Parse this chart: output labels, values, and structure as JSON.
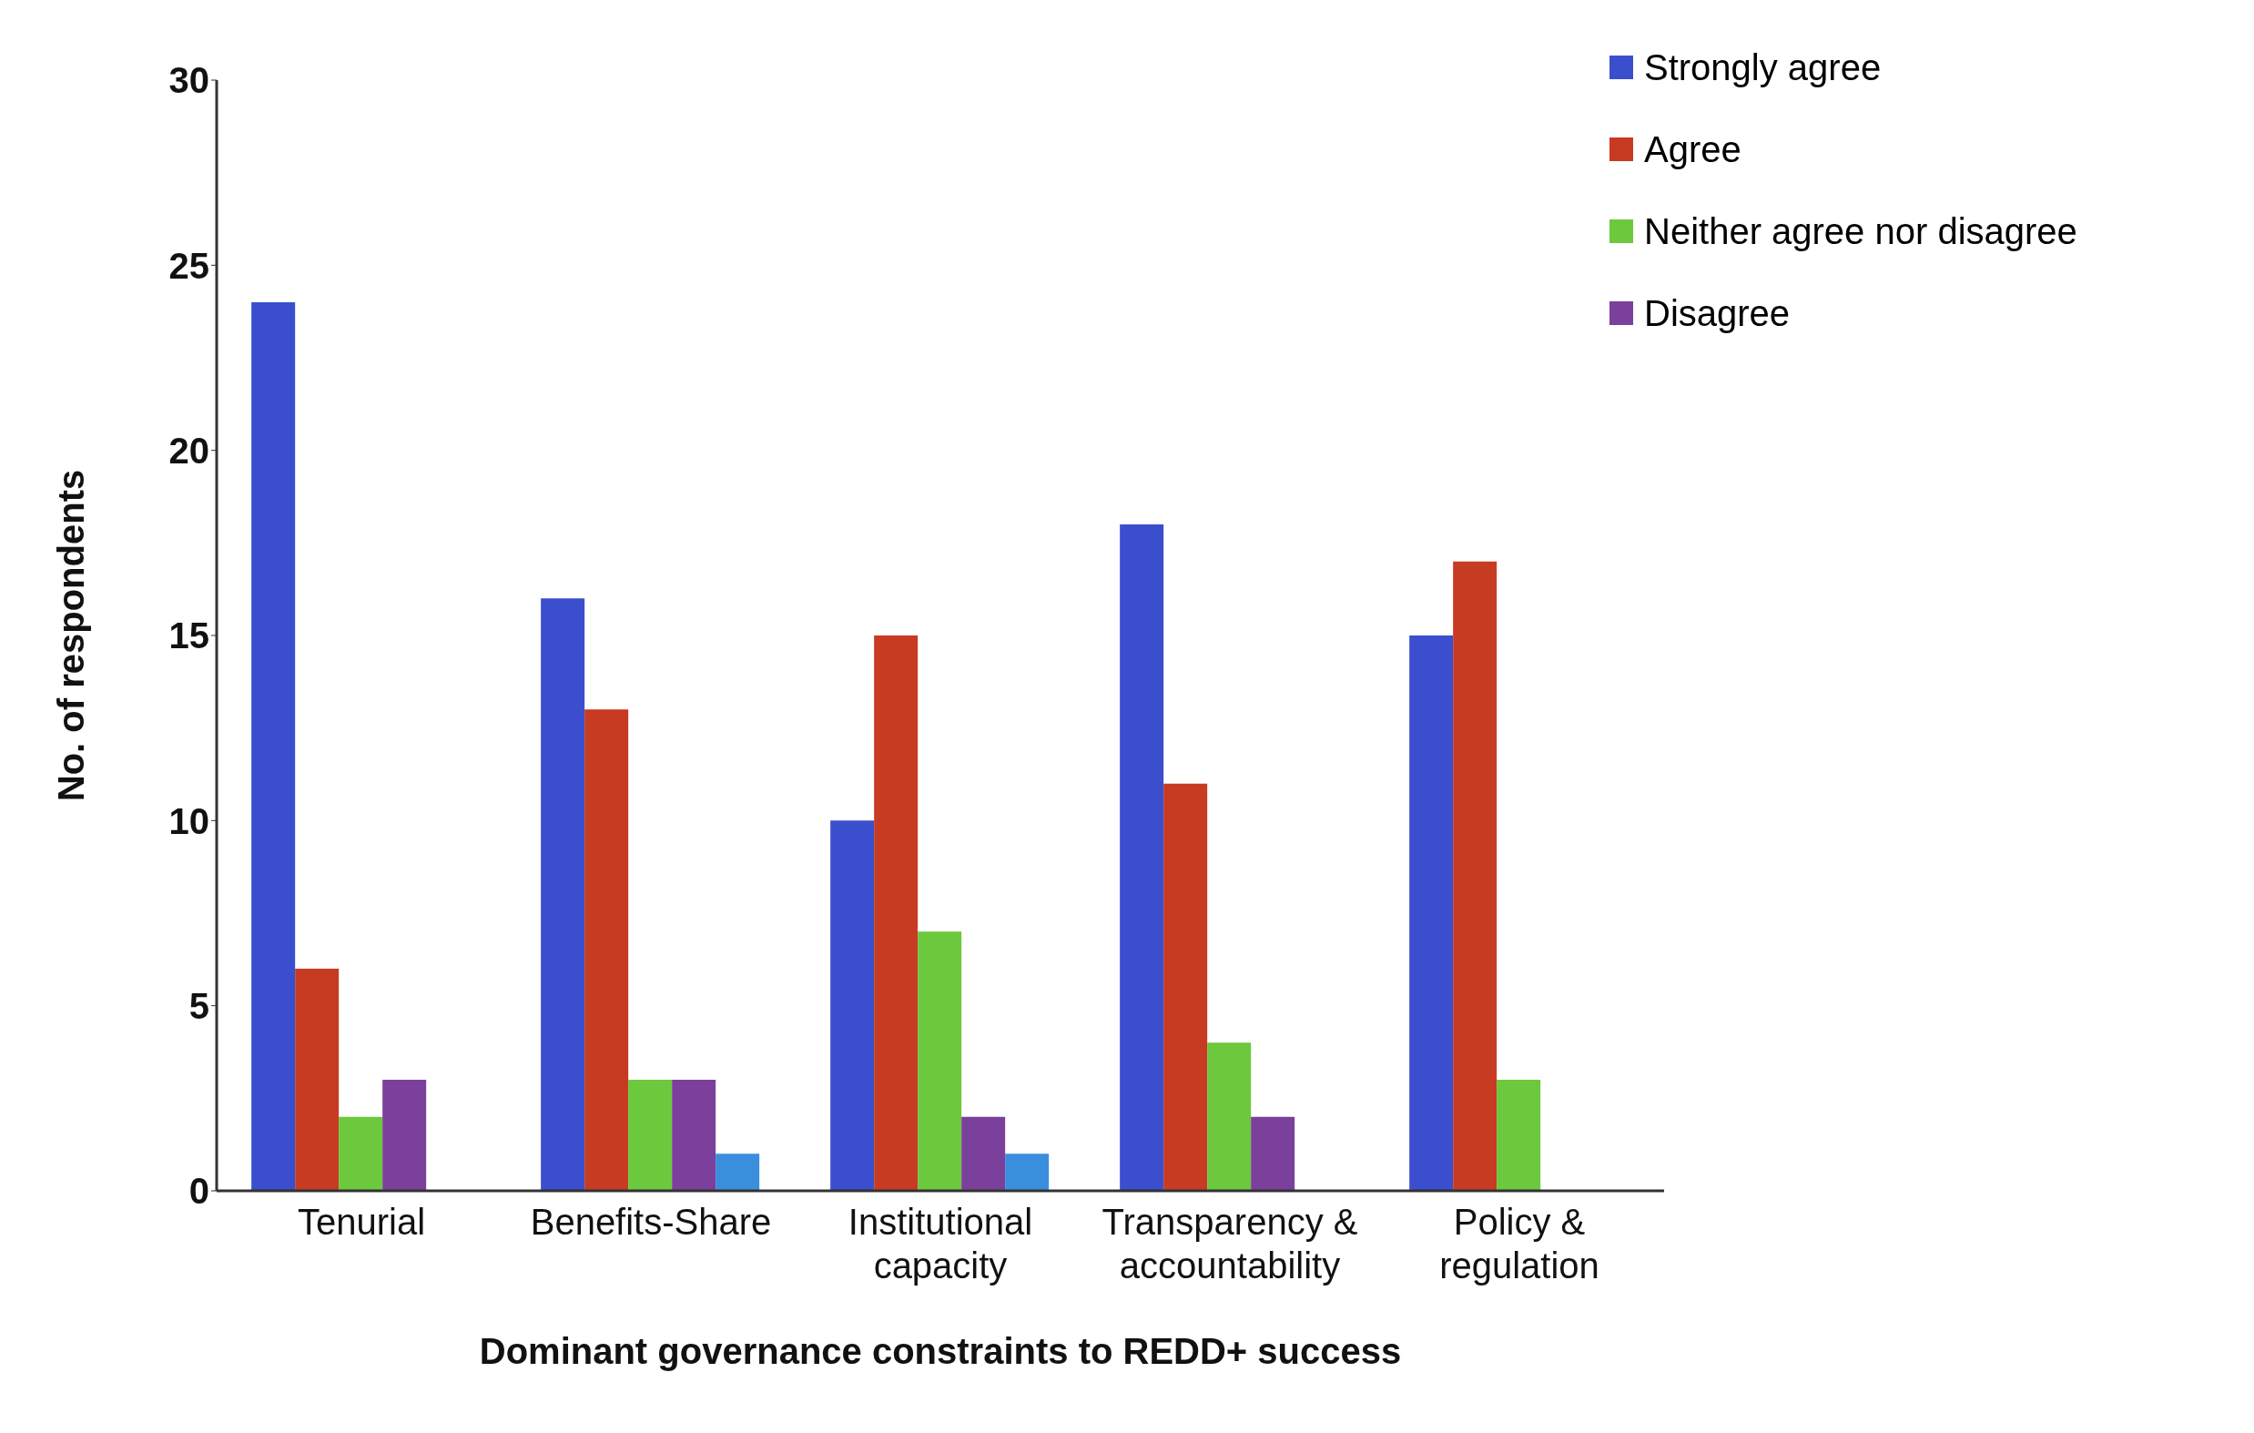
{
  "chart_data": {
    "type": "bar",
    "xlabel": "Dominant governance constraints to REDD+ success",
    "ylabel": "No. of respondents",
    "categories": [
      "Tenurial",
      "Benefits-Share",
      "Institutional capacity",
      "Transparency & accountability",
      "Policy & regulation"
    ],
    "series": [
      {
        "name": "Strongly agree",
        "color": "#3b4fce",
        "values": [
          24,
          16,
          10,
          18,
          15
        ]
      },
      {
        "name": "Agree",
        "color": "#c73b22",
        "values": [
          6,
          13,
          15,
          11,
          17
        ]
      },
      {
        "name": "Neither agree nor disagree",
        "color": "#6cc83c",
        "values": [
          2,
          3,
          7,
          4,
          3
        ]
      },
      {
        "name": "Disagree",
        "color": "#7b3f9c",
        "values": [
          3,
          3,
          2,
          2,
          null
        ]
      },
      {
        "color": "#3a8fdc",
        "values": [
          null,
          1,
          1,
          null,
          null
        ]
      }
    ],
    "ylim": [
      0,
      30
    ],
    "yticks": [
      0,
      5,
      10,
      15,
      20,
      25,
      30
    ],
    "grid": false,
    "legend": "top right"
  }
}
